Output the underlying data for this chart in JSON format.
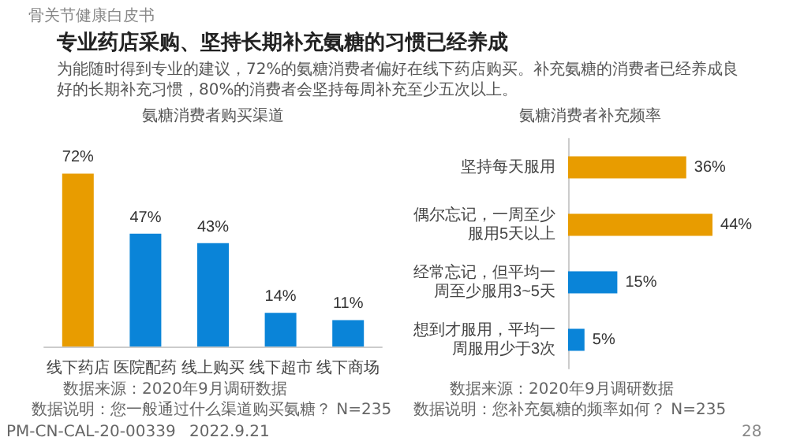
{
  "chart_data": [
    {
      "type": "bar",
      "title": "氨糖消费者购买渠道",
      "categories": [
        "线下药店",
        "医院配药",
        "线上购买",
        "线下超市",
        "线下商场"
      ],
      "values": [
        72,
        47,
        43,
        14,
        11
      ],
      "colors": [
        "#e89c00",
        "#0a84d8",
        "#0a84d8",
        "#0a84d8",
        "#0a84d8"
      ],
      "value_labels": [
        "72%",
        "47%",
        "43%",
        "14%",
        "11%"
      ],
      "annotations": [
        "骨关节健康白皮书",
        "专业药店采购、坚持长期补充氨糖的习惯已经养成",
        "为能随时得到专业的建议，72%的氨糖消费者偏好在线下药店购买。补充氨糖的消费者已经养成良好的长期补充习惯，80%的消费者会坚持每周补充至少五次以上。",
        "数据来源：2020年9月调研数据",
        "数据说明：您一般通过什么渠道购买氨糖？ N=235",
        "PM-CN-CAL-20-00339",
        "2022.9.21"
      ]
    },
    {
      "type": "bar",
      "orientation": "horizontal",
      "title": "氨糖消费者补充频率",
      "categories": [
        "坚持每天服用",
        "偶尔忘记，一周至少服用5天以上",
        "经常忘记，但平均一周至少服用3~5天",
        "想到才服用，平均一周服用少于3次"
      ],
      "values": [
        36,
        44,
        15,
        5
      ],
      "colors": [
        "#e89c00",
        "#e89c00",
        "#0a84d8",
        "#0a84d8"
      ],
      "value_labels": [
        "36%",
        "44%",
        "15%",
        "5%"
      ],
      "annotations": [
        "数据来源：2020年9月调研数据",
        "数据说明：您补充氨糖的频率如何？ N=235",
        "28"
      ]
    }
  ]
}
